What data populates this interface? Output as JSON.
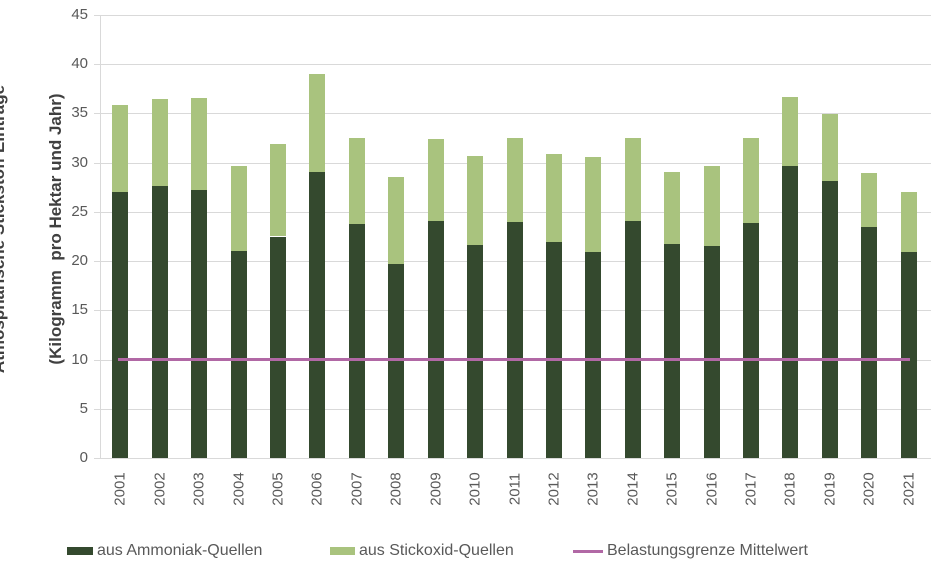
{
  "chart_data": {
    "type": "bar",
    "stacked": true,
    "title": "",
    "xlabel": "",
    "ylabel": "Atmosphärische Stickstoff Einträge (Kilogramm pro Hektar und Jahr)",
    "ylabel_line1": "Atmosphärische Stickstoff Einträge",
    "ylabel_line2": "(Kilogramm  pro Hektar und Jahr)",
    "ylim": [
      0,
      45
    ],
    "yticks": [
      0,
      5,
      10,
      15,
      20,
      25,
      30,
      35,
      40,
      45
    ],
    "grid": true,
    "legend_position": "bottom",
    "categories": [
      "2001",
      "2002",
      "2003",
      "2004",
      "2005",
      "2006",
      "2007",
      "2008",
      "2009",
      "2010",
      "2011",
      "2012",
      "2013",
      "2014",
      "2015",
      "2016",
      "2017",
      "2018",
      "2019",
      "2020",
      "2021"
    ],
    "series": [
      {
        "name": "aus Ammoniak-Quellen",
        "color": "#34492e",
        "values": [
          27.0,
          27.6,
          27.2,
          21.0,
          22.5,
          29.1,
          23.8,
          19.7,
          24.1,
          21.6,
          24.0,
          21.9,
          20.9,
          24.1,
          21.7,
          21.5,
          23.9,
          29.7,
          28.1,
          23.5,
          20.9
        ]
      },
      {
        "name": "aus Stickoxid-Quellen",
        "color": "#a9c37e",
        "values": [
          8.9,
          8.9,
          9.4,
          8.7,
          9.4,
          9.9,
          8.7,
          8.8,
          8.3,
          9.1,
          8.5,
          9.0,
          9.7,
          8.4,
          7.4,
          8.2,
          8.6,
          7.0,
          6.8,
          5.4,
          6.1
        ]
      }
    ],
    "totals": [
      35.9,
      36.5,
      36.6,
      29.7,
      31.9,
      39.0,
      32.5,
      28.5,
      32.4,
      30.7,
      32.5,
      30.9,
      30.6,
      32.5,
      29.1,
      29.7,
      32.5,
      36.7,
      34.9,
      28.9,
      27.0
    ],
    "reference_line": {
      "name": "Belastungsgrenze Mittelwert",
      "value": 10,
      "color": "#b168a5"
    }
  },
  "colors": {
    "background": "#ffffff",
    "gridline": "#d9d9d9",
    "tick_text": "#595959",
    "axis_title_text": "#404040",
    "ammoniak_green": "#34492e",
    "stickoxid_green": "#a9c37e",
    "limit_line_purple": "#b168a5"
  }
}
